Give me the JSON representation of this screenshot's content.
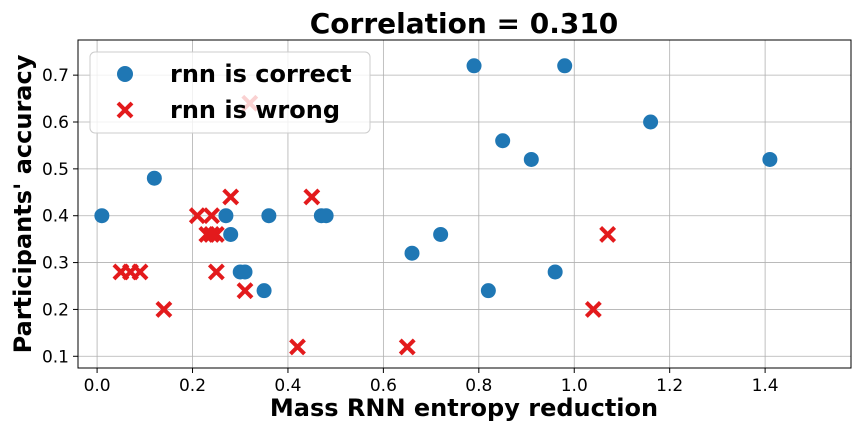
{
  "chart_data": {
    "type": "scatter",
    "title": "Correlation = 0.310",
    "xlabel": "Mass RNN entropy reduction",
    "ylabel": "Participants' accuracy",
    "xlim": [
      -0.04,
      1.58
    ],
    "ylim": [
      0.075,
      0.775
    ],
    "xticks": [
      0.0,
      0.2,
      0.4,
      0.6,
      0.8,
      1.0,
      1.2,
      1.4
    ],
    "xtick_labels": [
      "0.0",
      "0.2",
      "0.4",
      "0.6",
      "0.8",
      "1.0",
      "1.2",
      "1.4"
    ],
    "yticks": [
      0.1,
      0.2,
      0.3,
      0.4,
      0.5,
      0.6,
      0.7
    ],
    "ytick_labels": [
      "0.1",
      "0.2",
      "0.3",
      "0.4",
      "0.5",
      "0.6",
      "0.7"
    ],
    "grid": true,
    "legend_position": "top-left",
    "series": [
      {
        "name": "rnn is correct",
        "marker": "circle",
        "color": "#1f77b4",
        "points": [
          [
            0.01,
            0.4
          ],
          [
            0.12,
            0.48
          ],
          [
            0.27,
            0.4
          ],
          [
            0.28,
            0.36
          ],
          [
            0.3,
            0.28
          ],
          [
            0.31,
            0.28
          ],
          [
            0.35,
            0.24
          ],
          [
            0.36,
            0.4
          ],
          [
            0.47,
            0.4
          ],
          [
            0.48,
            0.4
          ],
          [
            0.66,
            0.32
          ],
          [
            0.72,
            0.36
          ],
          [
            0.79,
            0.72
          ],
          [
            0.82,
            0.24
          ],
          [
            0.85,
            0.56
          ],
          [
            0.91,
            0.52
          ],
          [
            0.96,
            0.28
          ],
          [
            0.98,
            0.72
          ],
          [
            1.16,
            0.6
          ],
          [
            1.41,
            0.52
          ]
        ]
      },
      {
        "name": "rnn is wrong",
        "marker": "x",
        "color": "#e31a1c",
        "points": [
          [
            0.05,
            0.28
          ],
          [
            0.07,
            0.28
          ],
          [
            0.09,
            0.28
          ],
          [
            0.14,
            0.2
          ],
          [
            0.21,
            0.4
          ],
          [
            0.23,
            0.36
          ],
          [
            0.24,
            0.4
          ],
          [
            0.24,
            0.36
          ],
          [
            0.25,
            0.36
          ],
          [
            0.25,
            0.28
          ],
          [
            0.28,
            0.44
          ],
          [
            0.31,
            0.24
          ],
          [
            0.32,
            0.64
          ],
          [
            0.42,
            0.12
          ],
          [
            0.45,
            0.44
          ],
          [
            0.65,
            0.12
          ],
          [
            1.04,
            0.2
          ],
          [
            1.07,
            0.36
          ]
        ]
      }
    ]
  }
}
